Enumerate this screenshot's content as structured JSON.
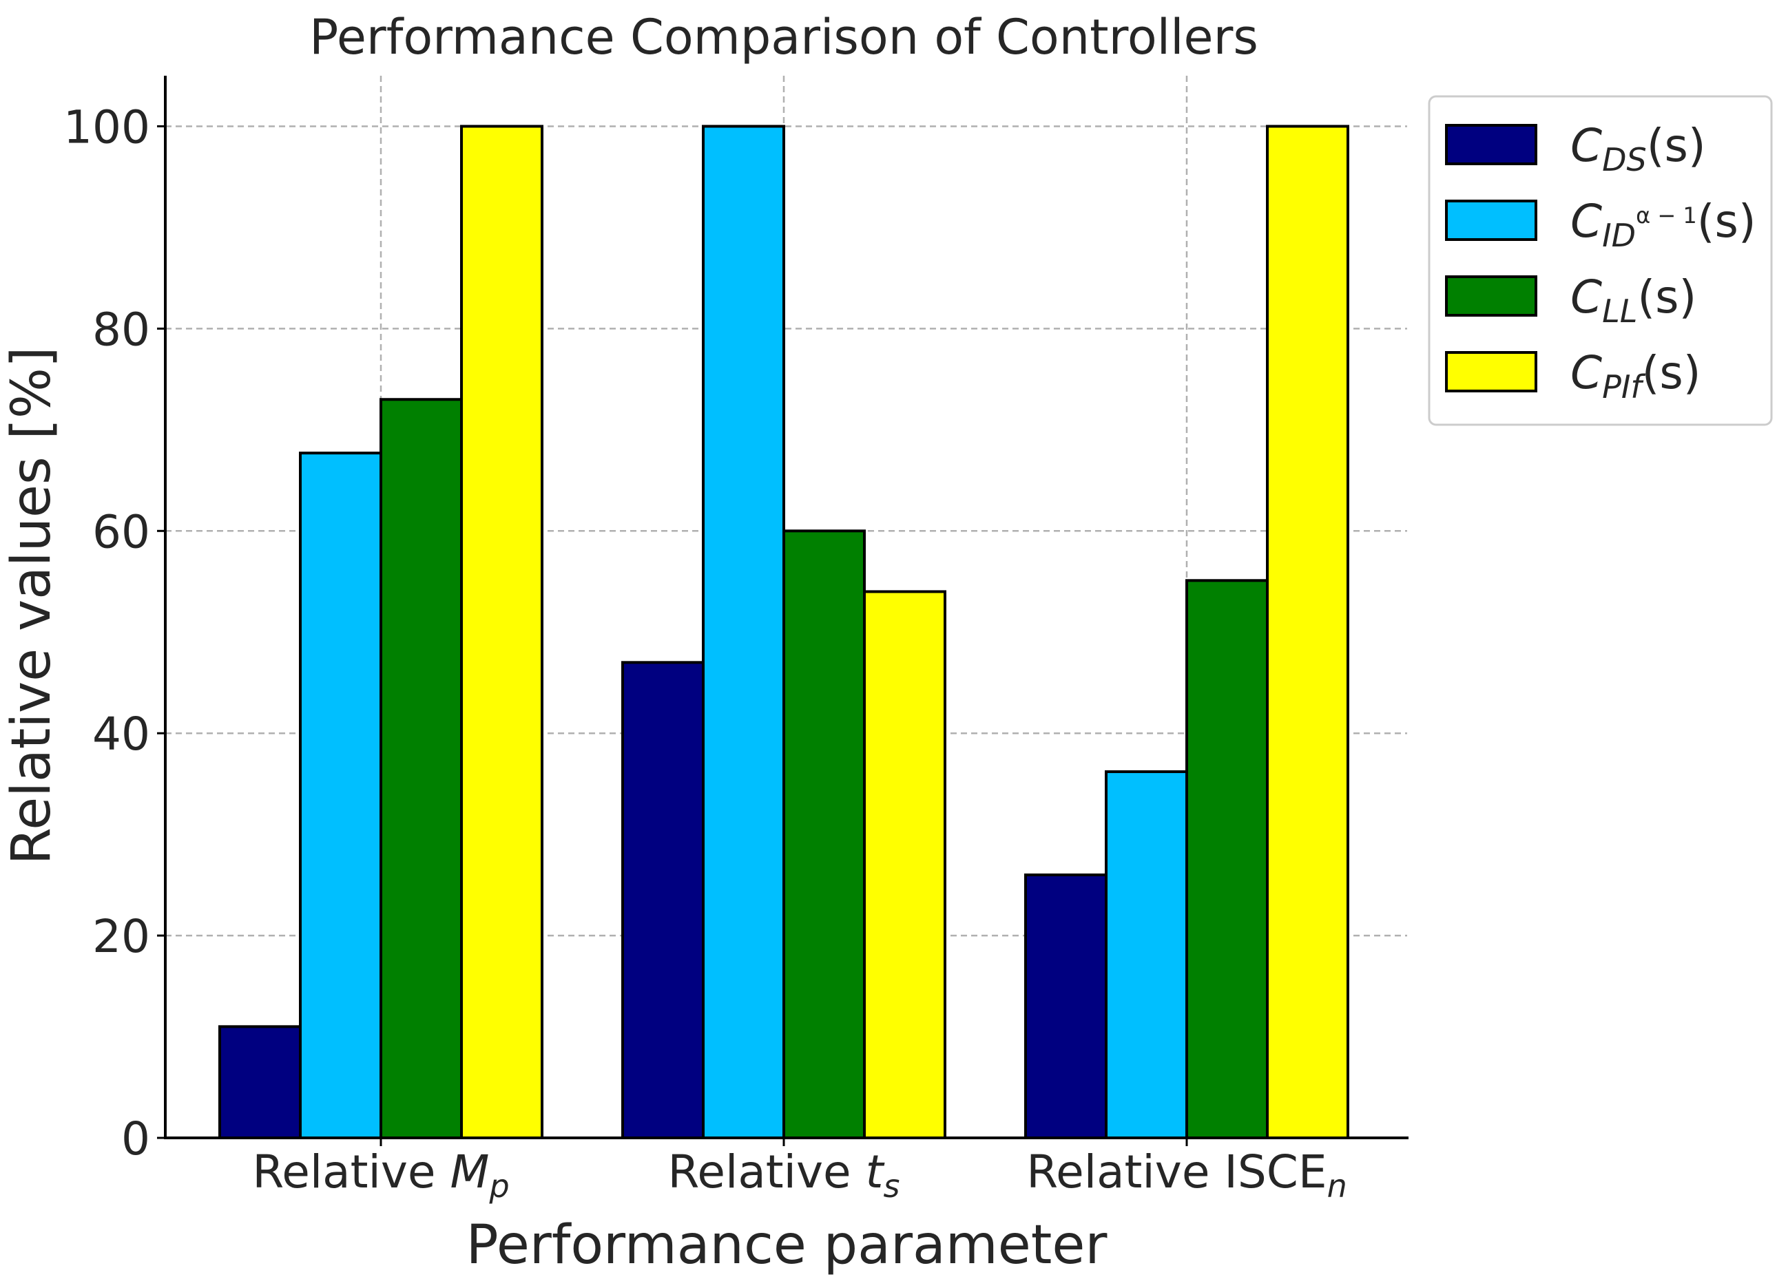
{
  "chart_data": {
    "type": "bar",
    "title": "Performance Comparison of Controllers",
    "xlabel": "Performance parameter",
    "ylabel": "Relative values [%]",
    "ylim": [
      0,
      105
    ],
    "yticks": [
      0,
      20,
      40,
      60,
      80,
      100
    ],
    "grid": true,
    "legend_position": "outside-top-right",
    "categories": [
      {
        "prefix": "Relative ",
        "sym": "M",
        "sub": "p",
        "sym_italic": true,
        "sub_italic": true
      },
      {
        "prefix": "Relative ",
        "sym": "t",
        "sub": "s",
        "sym_italic": true,
        "sub_italic": true
      },
      {
        "prefix": "Relative ",
        "sym": "ISCE",
        "sub": "n",
        "sym_italic": false,
        "sub_italic": true
      }
    ],
    "series": [
      {
        "name": "C_DS(s)",
        "label_main": "C",
        "label_sub": "DS",
        "label_tail": "(s)",
        "color": "#000080",
        "values": [
          11,
          47,
          26
        ]
      },
      {
        "name": "C_ID^(α-1)(s)",
        "label_main": "C",
        "label_sub": "ID",
        "label_sup": "α − 1",
        "label_tail": "(s)",
        "color": "#00BFFF",
        "values": [
          67.7,
          100,
          36.2
        ]
      },
      {
        "name": "C_LL(s)",
        "label_main": "C",
        "label_sub": "LL",
        "label_tail": "(s)",
        "color": "#008000",
        "values": [
          73,
          60,
          55.1
        ]
      },
      {
        "name": "C_PIf(s)",
        "label_main": "C",
        "label_sub": "PIf",
        "label_tail": "(s)",
        "color": "#FFFF00",
        "values": [
          100,
          54,
          100
        ]
      }
    ]
  }
}
